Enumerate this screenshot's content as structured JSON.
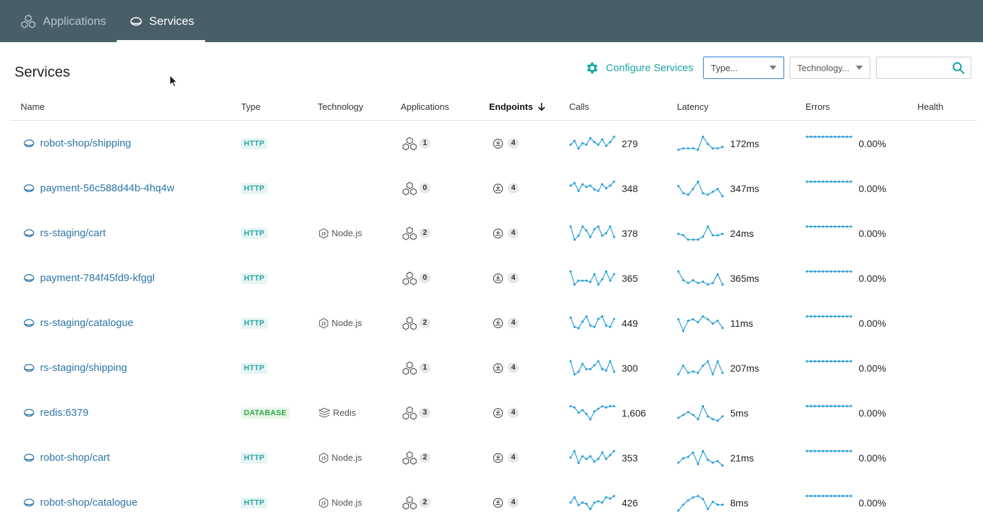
{
  "nav": {
    "tabs": [
      {
        "label": "Applications",
        "icon": "applications-icon",
        "active": false
      },
      {
        "label": "Services",
        "icon": "service-icon",
        "active": true
      }
    ]
  },
  "page": {
    "title": "Services"
  },
  "toolbar": {
    "configure_label": "Configure Services",
    "type_filter": {
      "selected": "Type..."
    },
    "technology_filter": {
      "selected": "Technology..."
    },
    "search": {
      "value": "",
      "placeholder": ""
    }
  },
  "table": {
    "columns": [
      "Name",
      "Type",
      "Technology",
      "Applications",
      "Endpoints",
      "Calls",
      "Latency",
      "Errors",
      "Health"
    ],
    "sorted_column": "Endpoints",
    "sort_direction": "descending",
    "colors": {
      "link": "#2d75a6",
      "accent": "#1aa7a2",
      "spark": "#2a9fd8"
    },
    "rows": [
      {
        "name": "robot-shop/shipping",
        "type": "HTTP",
        "technology": "",
        "applications": "1",
        "endpoints": "4",
        "calls": "279",
        "latency": "172ms",
        "errors": "0.00%",
        "calls_trend": [
          0.6,
          0.3,
          0.9,
          0.5,
          0.6,
          0.1,
          0.4,
          0.6,
          0.2,
          0.7,
          0.4,
          0.0
        ],
        "latency_trend": [
          0.9,
          0.8,
          0.8,
          0.8,
          0.9,
          0.0,
          0.5,
          0.8,
          0.8,
          0.7
        ]
      },
      {
        "name": "payment-56c588d44b-4hq4w",
        "type": "HTTP",
        "technology": "",
        "applications": "0",
        "endpoints": "4",
        "calls": "348",
        "latency": "347ms",
        "errors": "0.00%",
        "calls_trend": [
          0.3,
          0.1,
          0.7,
          0.2,
          0.4,
          0.3,
          0.6,
          0.7,
          0.2,
          0.5,
          0.3,
          0.0
        ],
        "latency_trend": [
          0.3,
          0.8,
          0.9,
          0.5,
          0.0,
          0.8,
          0.9,
          0.7,
          0.5,
          1.0
        ]
      },
      {
        "name": "rs-staging/cart",
        "type": "HTTP",
        "technology": "Node.js",
        "applications": "2",
        "endpoints": "4",
        "calls": "378",
        "latency": "24ms",
        "errors": "0.00%",
        "calls_trend": [
          0.0,
          1.0,
          0.7,
          0.0,
          0.3,
          0.8,
          0.2,
          0.0,
          0.7,
          0.5,
          0.0,
          0.8
        ],
        "latency_trend": [
          0.5,
          0.6,
          0.9,
          0.9,
          0.9,
          0.7,
          0.0,
          0.6,
          0.6,
          0.5
        ]
      },
      {
        "name": "payment-784f45fd9-kfggl",
        "type": "HTTP",
        "technology": "",
        "applications": "0",
        "endpoints": "4",
        "calls": "365",
        "latency": "365ms",
        "errors": "0.00%",
        "calls_trend": [
          0.0,
          1.0,
          0.7,
          0.7,
          0.7,
          0.8,
          0.2,
          1.0,
          0.6,
          0.0,
          0.7,
          0.2
        ],
        "latency_trend": [
          0.0,
          0.6,
          0.8,
          0.6,
          0.8,
          0.7,
          0.9,
          0.8,
          0.2,
          0.9
        ]
      },
      {
        "name": "rs-staging/catalogue",
        "type": "HTTP",
        "technology": "Node.js",
        "applications": "2",
        "endpoints": "4",
        "calls": "449",
        "latency": "11ms",
        "errors": "0.00%",
        "calls_trend": [
          0.1,
          0.8,
          0.9,
          0.4,
          0.0,
          0.7,
          0.8,
          0.2,
          0.0,
          0.7,
          0.8,
          0.2
        ],
        "latency_trend": [
          0.2,
          1.0,
          0.3,
          0.2,
          0.4,
          0.0,
          0.2,
          0.5,
          0.3,
          0.8
        ]
      },
      {
        "name": "rs-staging/shipping",
        "type": "HTTP",
        "technology": "",
        "applications": "1",
        "endpoints": "4",
        "calls": "300",
        "latency": "207ms",
        "errors": "0.00%",
        "calls_trend": [
          0.0,
          1.0,
          0.8,
          0.2,
          0.6,
          0.6,
          0.3,
          0.0,
          0.6,
          0.7,
          0.0,
          0.8
        ],
        "latency_trend": [
          0.9,
          0.3,
          0.8,
          0.7,
          0.8,
          0.3,
          0.0,
          0.9,
          0.0,
          0.8
        ]
      },
      {
        "name": "redis:6379",
        "type": "DATABASE",
        "technology": "Redis",
        "applications": "3",
        "endpoints": "4",
        "calls": "1,606",
        "latency": "5ms",
        "errors": "0.00%",
        "calls_trend": [
          0.0,
          0.1,
          0.5,
          0.3,
          0.6,
          1.0,
          0.4,
          0.2,
          0.0,
          0.1,
          0.0,
          0.0
        ],
        "latency_trend": [
          0.8,
          0.6,
          0.4,
          0.6,
          0.9,
          0.0,
          0.7,
          0.9,
          1.0,
          0.7
        ]
      },
      {
        "name": "robot-shop/cart",
        "type": "HTTP",
        "technology": "Node.js",
        "applications": "2",
        "endpoints": "4",
        "calls": "353",
        "latency": "21ms",
        "errors": "0.00%",
        "calls_trend": [
          0.5,
          0.0,
          0.9,
          0.4,
          0.6,
          0.4,
          0.8,
          0.6,
          0.1,
          0.6,
          0.3,
          0.0
        ],
        "latency_trend": [
          0.8,
          0.5,
          0.4,
          0.1,
          0.9,
          0.0,
          0.6,
          0.8,
          0.7,
          1.0
        ]
      },
      {
        "name": "robot-shop/catalogue",
        "type": "HTTP",
        "technology": "Node.js",
        "applications": "2",
        "endpoints": "4",
        "calls": "426",
        "latency": "8ms",
        "errors": "0.00%",
        "calls_trend": [
          0.5,
          0.1,
          0.7,
          0.5,
          0.6,
          1.0,
          0.5,
          0.4,
          0.5,
          0.1,
          0.2,
          0.0
        ],
        "latency_trend": [
          1.0,
          0.6,
          0.3,
          0.1,
          0.0,
          0.2,
          0.9,
          0.4,
          0.6,
          0.6
        ]
      }
    ]
  }
}
